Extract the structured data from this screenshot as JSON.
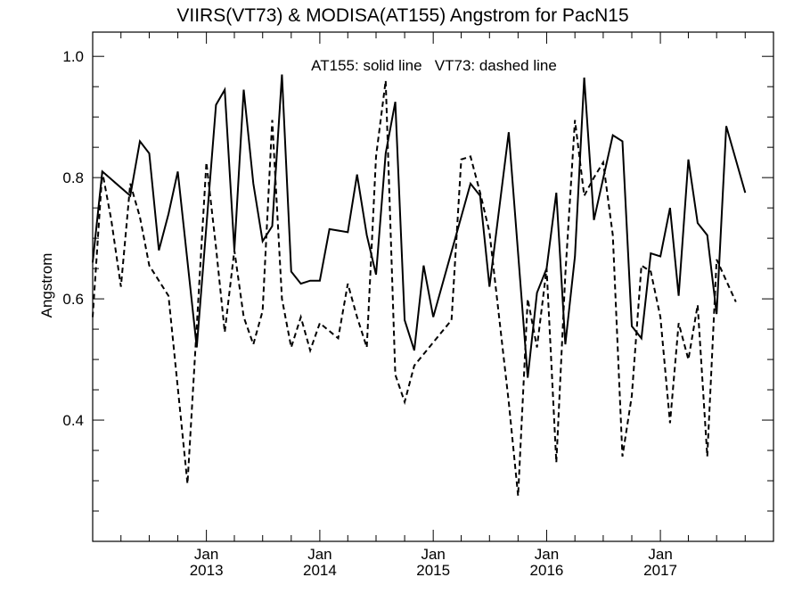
{
  "chart_data": {
    "type": "line",
    "title": "VIIRS(VT73) & MODISA(AT155)  Angstrom for PacN15",
    "ylabel": "Angstrom",
    "xlabel": "",
    "annotation": "AT155: solid line   VT73: dashed line",
    "xlim": [
      "2012-01-01",
      "2017-12-31"
    ],
    "ylim": [
      0.2,
      1.04
    ],
    "grid": false,
    "y_ticks": [
      {
        "value": 0.4,
        "label": "0.4"
      },
      {
        "value": 0.6,
        "label": "0.6"
      },
      {
        "value": 0.8,
        "label": "0.8"
      },
      {
        "value": 1.0,
        "label": "1.0"
      }
    ],
    "x_ticks": [
      {
        "date": "2013-01-01",
        "month": "Jan",
        "year": "2013"
      },
      {
        "date": "2014-01-01",
        "month": "Jan",
        "year": "2014"
      },
      {
        "date": "2015-01-01",
        "month": "Jan",
        "year": "2015"
      },
      {
        "date": "2016-01-01",
        "month": "Jan",
        "year": "2016"
      },
      {
        "date": "2017-01-01",
        "month": "Jan",
        "year": "2017"
      }
    ],
    "series": [
      {
        "name": "AT155",
        "style": "solid",
        "points": [
          [
            "2012-01-01",
            0.66
          ],
          [
            "2012-02-01",
            0.81
          ],
          [
            "2012-05-01",
            0.77
          ],
          [
            "2012-06-01",
            0.86
          ],
          [
            "2012-07-01",
            0.84
          ],
          [
            "2012-08-01",
            0.68
          ],
          [
            "2012-09-01",
            0.74
          ],
          [
            "2012-10-01",
            0.81
          ],
          [
            "2012-12-01",
            0.52
          ],
          [
            "2013-02-01",
            0.92
          ],
          [
            "2013-03-01",
            0.945
          ],
          [
            "2013-04-01",
            0.68
          ],
          [
            "2013-05-01",
            0.945
          ],
          [
            "2013-06-01",
            0.79
          ],
          [
            "2013-07-01",
            0.695
          ],
          [
            "2013-08-01",
            0.72
          ],
          [
            "2013-09-01",
            0.97
          ],
          [
            "2013-10-01",
            0.645
          ],
          [
            "2013-11-01",
            0.625
          ],
          [
            "2013-12-01",
            0.63
          ],
          [
            "2014-01-01",
            0.63
          ],
          [
            "2014-02-01",
            0.715
          ],
          [
            "2014-04-01",
            0.71
          ],
          [
            "2014-05-01",
            0.805
          ],
          [
            "2014-06-01",
            0.705
          ],
          [
            "2014-07-01",
            0.64
          ],
          [
            "2014-08-01",
            0.84
          ],
          [
            "2014-09-01",
            0.925
          ],
          [
            "2014-10-01",
            0.565
          ],
          [
            "2014-11-01",
            0.515
          ],
          [
            "2014-12-01",
            0.655
          ],
          [
            "2015-01-01",
            0.57
          ],
          [
            "2015-05-01",
            0.79
          ],
          [
            "2015-06-01",
            0.77
          ],
          [
            "2015-07-01",
            0.62
          ],
          [
            "2015-09-01",
            0.875
          ],
          [
            "2015-11-01",
            0.47
          ],
          [
            "2015-12-01",
            0.61
          ],
          [
            "2016-01-01",
            0.65
          ],
          [
            "2016-02-01",
            0.775
          ],
          [
            "2016-03-01",
            0.525
          ],
          [
            "2016-04-01",
            0.67
          ],
          [
            "2016-05-01",
            0.965
          ],
          [
            "2016-06-01",
            0.73
          ],
          [
            "2016-08-01",
            0.87
          ],
          [
            "2016-09-01",
            0.86
          ],
          [
            "2016-10-01",
            0.555
          ],
          [
            "2016-11-01",
            0.535
          ],
          [
            "2016-12-01",
            0.675
          ],
          [
            "2017-01-01",
            0.67
          ],
          [
            "2017-02-01",
            0.75
          ],
          [
            "2017-03-01",
            0.605
          ],
          [
            "2017-04-01",
            0.83
          ],
          [
            "2017-05-01",
            0.725
          ],
          [
            "2017-06-01",
            0.705
          ],
          [
            "2017-07-01",
            0.575
          ],
          [
            "2017-08-01",
            0.885
          ],
          [
            "2017-10-01",
            0.775
          ]
        ]
      },
      {
        "name": "VT73",
        "style": "dashed",
        "points": [
          [
            "2012-01-01",
            0.57
          ],
          [
            "2012-02-01",
            0.81
          ],
          [
            "2012-03-01",
            0.73
          ],
          [
            "2012-04-01",
            0.62
          ],
          [
            "2012-05-01",
            0.79
          ],
          [
            "2012-06-01",
            0.735
          ],
          [
            "2012-07-01",
            0.655
          ],
          [
            "2012-09-01",
            0.605
          ],
          [
            "2012-11-01",
            0.295
          ],
          [
            "2013-01-01",
            0.825
          ],
          [
            "2013-02-01",
            0.685
          ],
          [
            "2013-03-01",
            0.545
          ],
          [
            "2013-04-01",
            0.68
          ],
          [
            "2013-05-01",
            0.57
          ],
          [
            "2013-06-01",
            0.525
          ],
          [
            "2013-07-01",
            0.58
          ],
          [
            "2013-08-01",
            0.895
          ],
          [
            "2013-09-01",
            0.6
          ],
          [
            "2013-10-01",
            0.52
          ],
          [
            "2013-11-01",
            0.57
          ],
          [
            "2013-12-01",
            0.515
          ],
          [
            "2014-01-01",
            0.56
          ],
          [
            "2014-03-01",
            0.535
          ],
          [
            "2014-04-01",
            0.625
          ],
          [
            "2014-05-01",
            0.57
          ],
          [
            "2014-06-01",
            0.52
          ],
          [
            "2014-07-01",
            0.835
          ],
          [
            "2014-08-01",
            0.96
          ],
          [
            "2014-09-01",
            0.475
          ],
          [
            "2014-10-01",
            0.43
          ],
          [
            "2014-11-01",
            0.49
          ],
          [
            "2015-03-01",
            0.565
          ],
          [
            "2015-04-01",
            0.83
          ],
          [
            "2015-05-01",
            0.835
          ],
          [
            "2015-06-01",
            0.775
          ],
          [
            "2015-07-01",
            0.71
          ],
          [
            "2015-09-01",
            0.43
          ],
          [
            "2015-10-01",
            0.275
          ],
          [
            "2015-11-01",
            0.6
          ],
          [
            "2015-12-01",
            0.52
          ],
          [
            "2016-01-01",
            0.65
          ],
          [
            "2016-02-01",
            0.33
          ],
          [
            "2016-03-01",
            0.64
          ],
          [
            "2016-04-01",
            0.895
          ],
          [
            "2016-05-01",
            0.77
          ],
          [
            "2016-06-01",
            0.8
          ],
          [
            "2016-07-01",
            0.825
          ],
          [
            "2016-08-01",
            0.705
          ],
          [
            "2016-09-01",
            0.34
          ],
          [
            "2016-10-01",
            0.44
          ],
          [
            "2016-11-01",
            0.655
          ],
          [
            "2016-12-01",
            0.645
          ],
          [
            "2017-01-01",
            0.57
          ],
          [
            "2017-02-01",
            0.395
          ],
          [
            "2017-03-01",
            0.56
          ],
          [
            "2017-04-01",
            0.5
          ],
          [
            "2017-05-01",
            0.59
          ],
          [
            "2017-06-01",
            0.34
          ],
          [
            "2017-07-01",
            0.665
          ],
          [
            "2017-09-01",
            0.595
          ]
        ]
      }
    ]
  }
}
